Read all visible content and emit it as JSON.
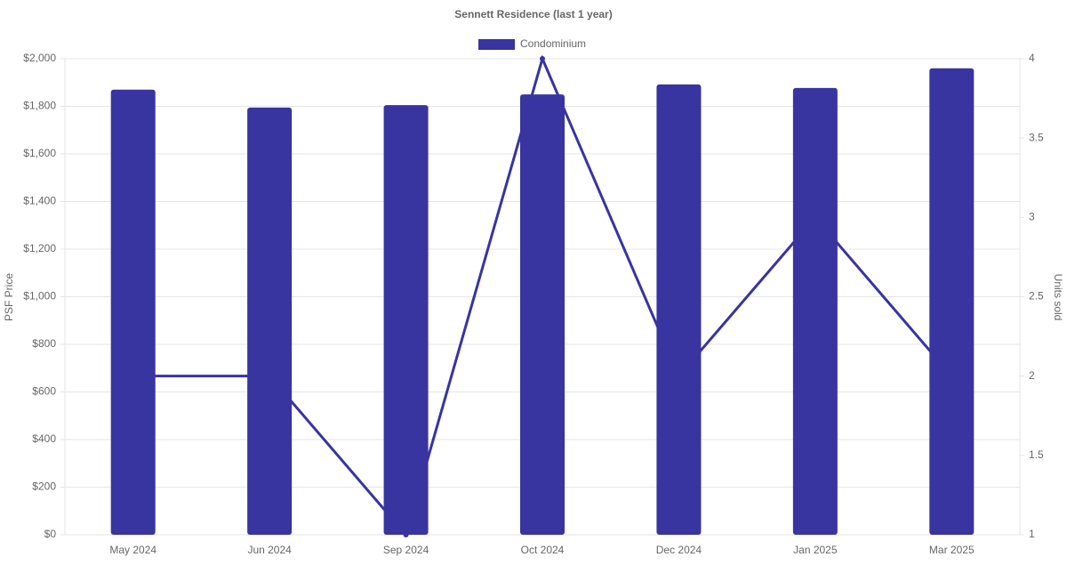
{
  "chart_data": {
    "type": "bar",
    "title": "Sennett Residence (last 1 year)",
    "categories": [
      "May 2024",
      "Jun 2024",
      "Sep 2024",
      "Oct 2024",
      "Dec 2024",
      "Jan 2025",
      "Mar 2025"
    ],
    "series": [
      {
        "name": "Condominium",
        "type": "bar",
        "color": "#3834a0",
        "values": [
          1870,
          1795,
          1805,
          1850,
          1892,
          1877,
          1960
        ]
      },
      {
        "type": "line",
        "axis": "y2",
        "color": "#3834a0",
        "values": [
          2,
          2,
          1,
          4,
          2,
          3,
          2
        ]
      }
    ],
    "ylabel": "PSF Price",
    "y2label": "Units sold",
    "ylim": [
      0,
      2000
    ],
    "yticks": [
      {
        "value": 0,
        "label": "$0"
      },
      {
        "value": 200,
        "label": "$200"
      },
      {
        "value": 400,
        "label": "$400"
      },
      {
        "value": 600,
        "label": "$600"
      },
      {
        "value": 800,
        "label": "$800"
      },
      {
        "value": 1000,
        "label": "$1,000"
      },
      {
        "value": 1200,
        "label": "$1,200"
      },
      {
        "value": 1400,
        "label": "$1,400"
      },
      {
        "value": 1600,
        "label": "$1,600"
      },
      {
        "value": 1800,
        "label": "$1,800"
      },
      {
        "value": 2000,
        "label": "$2,000"
      }
    ],
    "y2lim": [
      1,
      4
    ],
    "y2ticks": [
      1,
      1.5,
      2,
      2.5,
      3,
      3.5,
      4
    ],
    "grid": true
  }
}
